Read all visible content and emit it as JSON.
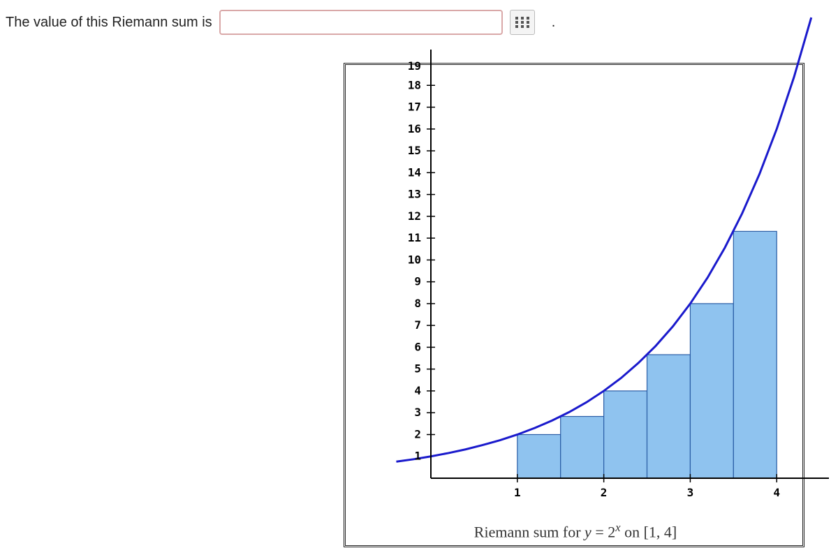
{
  "prompt_text": "The value of this Riemann sum is",
  "answer_value": "",
  "trailing_period": ".",
  "chart": {
    "type": "bar+curve",
    "background_color": "#ffffff",
    "axis_color": "#000000",
    "tick_font_family": "monospace",
    "tick_font_size": 16,
    "tick_font_weight": "bold",
    "xlim": [
      0,
      4.2
    ],
    "ylim": [
      0,
      19
    ],
    "x_ticks": [
      1,
      2,
      3,
      4
    ],
    "y_ticks": [
      2,
      3,
      4,
      5,
      6,
      7,
      8,
      9,
      10,
      11,
      12,
      13,
      14,
      15,
      16,
      17,
      18
    ],
    "y_top_label": "19",
    "bars": [
      {
        "x0": 1.0,
        "x1": 1.5,
        "h": 2.0
      },
      {
        "x0": 1.5,
        "x1": 2.0,
        "h": 2.83
      },
      {
        "x0": 2.0,
        "x1": 2.5,
        "h": 4.0
      },
      {
        "x0": 2.5,
        "x1": 3.0,
        "h": 5.66
      },
      {
        "x0": 3.0,
        "x1": 3.5,
        "h": 8.0
      },
      {
        "x0": 3.5,
        "x1": 4.0,
        "h": 11.31
      }
    ],
    "bar_fill": "#8fc3ef",
    "bar_stroke": "#2a5da6",
    "bar_stroke_width": 1.2,
    "curve_color": "#1a1acc",
    "curve_width": 3,
    "curve_points": [
      {
        "x": -0.4,
        "y": 0.76
      },
      {
        "x": -0.2,
        "y": 0.87
      },
      {
        "x": 0.0,
        "y": 1.0
      },
      {
        "x": 0.2,
        "y": 1.15
      },
      {
        "x": 0.4,
        "y": 1.32
      },
      {
        "x": 0.6,
        "y": 1.52
      },
      {
        "x": 0.8,
        "y": 1.74
      },
      {
        "x": 1.0,
        "y": 2.0
      },
      {
        "x": 1.2,
        "y": 2.3
      },
      {
        "x": 1.4,
        "y": 2.64
      },
      {
        "x": 1.6,
        "y": 3.03
      },
      {
        "x": 1.8,
        "y": 3.48
      },
      {
        "x": 2.0,
        "y": 4.0
      },
      {
        "x": 2.2,
        "y": 4.59
      },
      {
        "x": 2.4,
        "y": 5.28
      },
      {
        "x": 2.6,
        "y": 6.06
      },
      {
        "x": 2.8,
        "y": 6.96
      },
      {
        "x": 3.0,
        "y": 8.0
      },
      {
        "x": 3.2,
        "y": 9.19
      },
      {
        "x": 3.4,
        "y": 10.56
      },
      {
        "x": 3.6,
        "y": 12.13
      },
      {
        "x": 3.8,
        "y": 13.93
      },
      {
        "x": 4.0,
        "y": 16.0
      },
      {
        "x": 4.2,
        "y": 18.38
      },
      {
        "x": 4.4,
        "y": 21.11
      }
    ]
  },
  "caption": {
    "prefix": "Riemann sum for ",
    "func_lhs": "y",
    "eq": " = ",
    "base": "2",
    "exp": "x",
    "mid": " on ",
    "interval": "[1, 4]"
  }
}
